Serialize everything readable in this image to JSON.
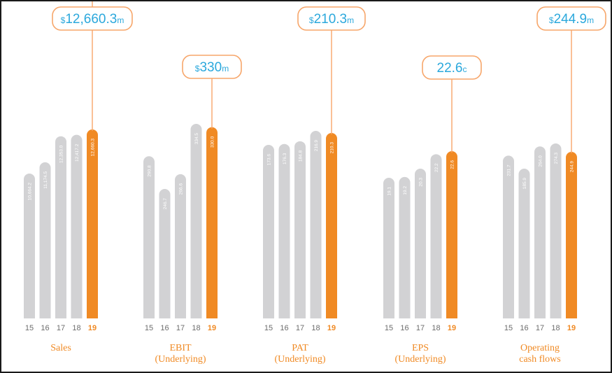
{
  "colors": {
    "bar": "#d2d2d4",
    "highlight": "#f08a24",
    "callout_text": "#2ba8dc",
    "callout_border": "#f7a66a"
  },
  "chart_data": [
    {
      "type": "bar",
      "title": [
        "Sales"
      ],
      "categories": [
        "15",
        "16",
        "17",
        "18",
        "19"
      ],
      "values": [
        10664.2,
        11174.5,
        12353.0,
        12417.2,
        12660.3
      ],
      "value_labels": [
        "10,664.2",
        "11,174.5",
        "12,353.0",
        "12,417.2",
        "12,660.3"
      ],
      "callout": {
        "prefix": "$",
        "value": "12,660.3",
        "suffix": "m"
      },
      "highlight_index": 4
    },
    {
      "type": "bar",
      "title": [
        "EBIT",
        "(Underlying)"
      ],
      "categories": [
        "15",
        "16",
        "17",
        "18",
        "19"
      ],
      "values": [
        290.8,
        246.7,
        266.6,
        334.5,
        330.0
      ],
      "value_labels": [
        "290.8",
        "246.7",
        "266.6",
        "334.5",
        "330.0"
      ],
      "callout": {
        "prefix": "$",
        "value": "330",
        "suffix": "m"
      },
      "highlight_index": 4
    },
    {
      "type": "bar",
      "title": [
        "PAT",
        "(Underlying)"
      ],
      "categories": [
        "15",
        "16",
        "17",
        "18",
        "19"
      ],
      "values": [
        173.6,
        176.3,
        184.8,
        216.9,
        210.3
      ],
      "value_labels": [
        "173.6",
        "176.3",
        "184.8",
        "216.9",
        "210.3"
      ],
      "callout": {
        "prefix": "$",
        "value": "210.3",
        "suffix": "m"
      },
      "highlight_index": 4
    },
    {
      "type": "bar",
      "title": [
        "EPS",
        "(Underlying)"
      ],
      "categories": [
        "15",
        "16",
        "17",
        "18",
        "19"
      ],
      "values": [
        19.1,
        19.2,
        20.3,
        22.2,
        22.6
      ],
      "value_labels": [
        "19.1",
        "19.2",
        "20.3",
        "22.2",
        "22.6"
      ],
      "callout": {
        "prefix": "",
        "value": "22.6",
        "suffix": "c"
      },
      "highlight_index": 4
    },
    {
      "type": "bar",
      "title": [
        "Operating",
        "cash flows"
      ],
      "categories": [
        "15",
        "16",
        "17",
        "18",
        "19"
      ],
      "values": [
        231.7,
        185.9,
        264.0,
        274.3,
        244.9
      ],
      "value_labels": [
        "231.7",
        "185.9",
        "264.0",
        "274.3",
        "244.9"
      ],
      "callout": {
        "prefix": "$",
        "value": "244.9",
        "suffix": "m"
      },
      "highlight_index": 4
    }
  ]
}
